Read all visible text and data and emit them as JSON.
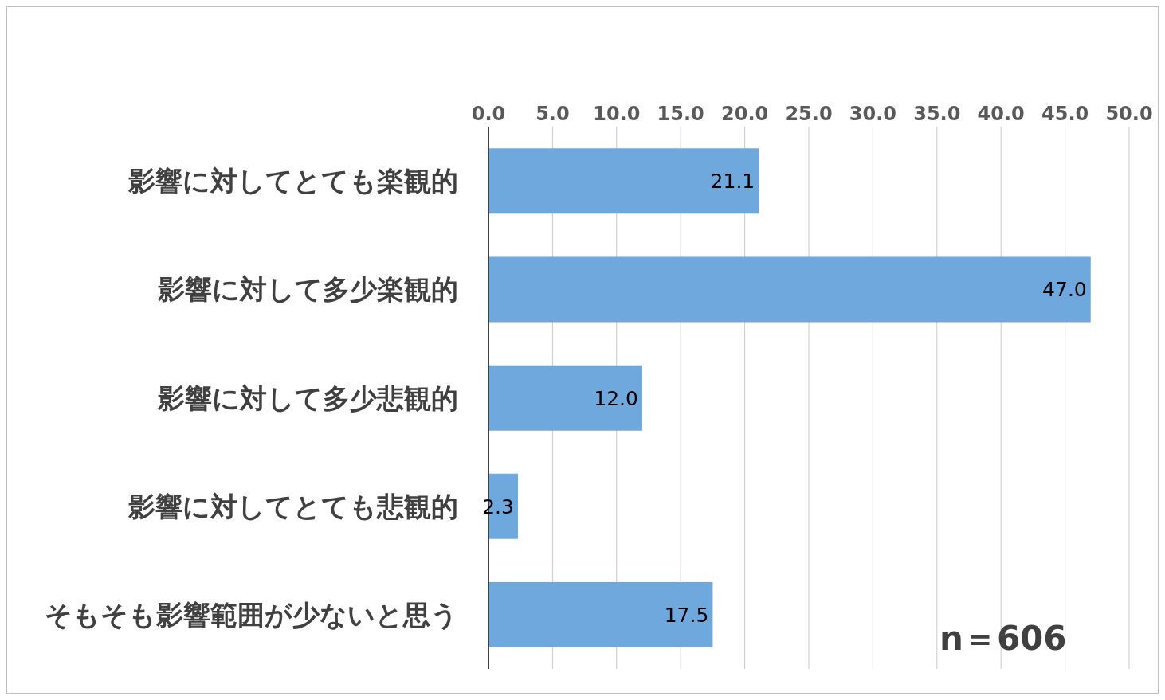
{
  "chart_data": {
    "type": "bar",
    "orientation": "horizontal",
    "categories": [
      "影響に対してとても楽観的",
      "影響に対して多少楽観的",
      "影響に対して多少悲観的",
      "影響に対してとても悲観的",
      "そもそも影響範囲が少ないと思う"
    ],
    "values": [
      21.1,
      47.0,
      12.0,
      2.3,
      17.5
    ],
    "value_labels": [
      "21.1",
      "47.0",
      "12.0",
      "2.3",
      "17.5"
    ],
    "color": "#6fa8dc",
    "xlim": [
      0,
      50
    ],
    "xticks": [
      {
        "value": 0,
        "label": "0.0"
      },
      {
        "value": 5,
        "label": "5.0"
      },
      {
        "value": 10,
        "label": "10.0"
      },
      {
        "value": 15,
        "label": "15.0"
      },
      {
        "value": 20,
        "label": "20.0"
      },
      {
        "value": 25,
        "label": "25.0"
      },
      {
        "value": 30,
        "label": "30.0"
      },
      {
        "value": 35,
        "label": "35.0"
      },
      {
        "value": 40,
        "label": "40.0"
      },
      {
        "value": 45,
        "label": "45.0"
      },
      {
        "value": 50,
        "label": "50.0"
      }
    ],
    "grid": "x",
    "annotations": [
      "n＝606"
    ]
  }
}
